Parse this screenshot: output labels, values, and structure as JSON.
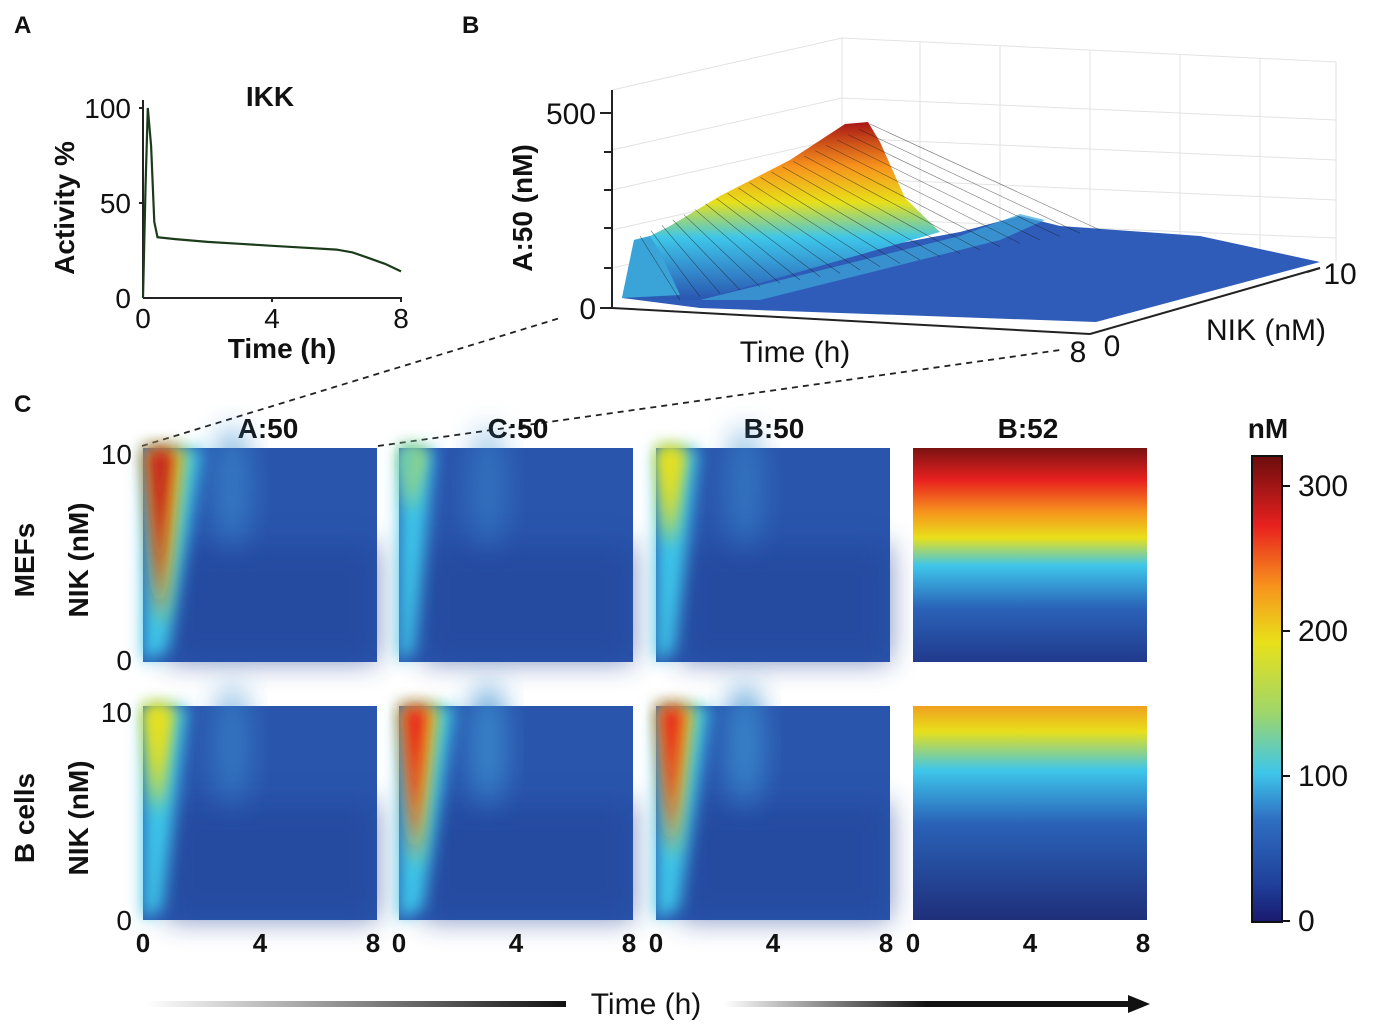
{
  "panels": {
    "a": "A",
    "b": "B",
    "c": "C"
  },
  "chart_data": [
    {
      "panel": "A",
      "type": "line",
      "title": "IKK",
      "xlabel": "Time (h)",
      "ylabel": "Activity %",
      "xticks": [
        "0",
        "4",
        "8"
      ],
      "yticks": [
        "0",
        "50",
        "100"
      ],
      "xlim": [
        0,
        8
      ],
      "ylim": [
        0,
        100
      ],
      "series": [
        {
          "color": "#1b3b1b",
          "x": [
            0,
            0.08,
            0.15,
            0.25,
            0.35,
            0.45,
            1,
            2,
            3,
            4,
            5,
            6,
            6.5,
            7,
            7.5,
            8
          ],
          "y": [
            0,
            60,
            100,
            80,
            40,
            32,
            31,
            29.5,
            28.5,
            27.5,
            26.5,
            25.5,
            24,
            21,
            18,
            14
          ]
        }
      ]
    },
    {
      "panel": "B",
      "type": "surface",
      "zlabel": "A:50 (nM)",
      "xlabel": "Time (h)",
      "ylabel": "NIK (nM)",
      "zticks": [
        "0",
        "500"
      ],
      "xticks_shown": [
        "8"
      ],
      "yticks_shown": [
        "0",
        "10"
      ],
      "xlim": [
        0,
        8
      ],
      "ylim": [
        0,
        10
      ],
      "zlim": [
        0,
        500
      ]
    },
    {
      "panel": "C",
      "type": "heatmap",
      "columns": [
        "A:50",
        "C:50",
        "B:50",
        "B:52"
      ],
      "rows": [
        "MEFs",
        "B cells"
      ],
      "ylabel": "NIK (nM)",
      "xlabel": "Time (h)",
      "xticks": [
        "0",
        "4",
        "8"
      ],
      "yticks": [
        "0",
        "10"
      ],
      "xlim": [
        0,
        8
      ],
      "ylim": [
        0,
        10
      ],
      "colorbar": {
        "label": "nM",
        "ticks": [
          "0",
          "100",
          "200",
          "300"
        ],
        "range": [
          0,
          320
        ]
      }
    }
  ]
}
